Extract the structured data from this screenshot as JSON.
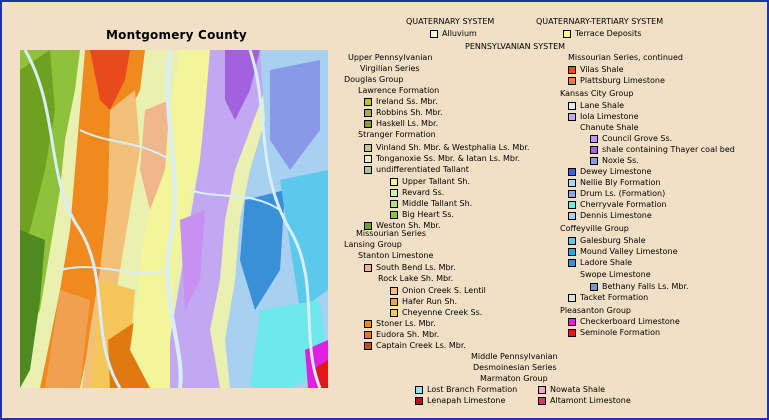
{
  "title": "Montgomery County",
  "headers": [
    {
      "id": "quaternary",
      "text": "QUATERNARY SYSTEM"
    },
    {
      "id": "quaternary-tertiary",
      "text": "QUATERNARY-TERTIARY SYSTEM"
    },
    {
      "id": "pennsylvanian",
      "text": "PENNSYLVANIAN SYSTEM"
    }
  ],
  "labels": [
    {
      "id": "upper-pennsylvanian",
      "text": "Upper Pennsylvanian"
    },
    {
      "id": "virgilian-series",
      "text": "Virgilian Series"
    },
    {
      "id": "douglas-group",
      "text": "Douglas Group"
    },
    {
      "id": "lawrence-formation",
      "text": "Lawrence Formation"
    },
    {
      "id": "stranger-formation",
      "text": "Stranger Formation"
    },
    {
      "id": "missourian-series",
      "text": "Missourian Series"
    },
    {
      "id": "lansing-group",
      "text": "Lansing Group"
    },
    {
      "id": "stanton-limestone",
      "text": "Stanton Limestone"
    },
    {
      "id": "rock-lake-sh",
      "text": "Rock Lake Sh. Mbr."
    },
    {
      "id": "missourian-cont",
      "text": "Missourian Series, continued"
    },
    {
      "id": "kansas-city-group",
      "text": "Kansas City Group"
    },
    {
      "id": "chanute-shale",
      "text": "Chanute Shale"
    },
    {
      "id": "coffeyville-group",
      "text": "Coffeyville Group"
    },
    {
      "id": "swope-limestone",
      "text": "Swope Limestone"
    },
    {
      "id": "pleasanton-group",
      "text": "Pleasanton Group"
    },
    {
      "id": "middle-pennsylvanian",
      "text": "Middle Pennsylvanian"
    },
    {
      "id": "desmoinesian-series",
      "text": "Desmoinesian Series"
    },
    {
      "id": "marmaton-group",
      "text": "Marmaton Group"
    }
  ],
  "units": [
    {
      "id": "alluvium",
      "label": "Alluvium",
      "color": "#f5f5dc"
    },
    {
      "id": "terrace",
      "label": "Terrace Deposits",
      "color": "#ffff7a"
    },
    {
      "id": "ireland",
      "label": "Ireland Ss. Mbr.",
      "color": "#bcc428"
    },
    {
      "id": "robbins",
      "label": "Robbins Sh. Mbr.",
      "color": "#a9ab3c"
    },
    {
      "id": "haskell",
      "label": "Haskell Ls. Mbr.",
      "color": "#8e9a2a"
    },
    {
      "id": "vinland",
      "label": "Vinland Sh. Mbr. & Westphalia Ls. Mbr.",
      "color": "#c6c67a"
    },
    {
      "id": "tonganoxie",
      "label": "Tonganoxie Ss. Mbr. & Iatan Ls. Mbr.",
      "color": "#eaf0b0"
    },
    {
      "id": "undiff-tallant",
      "label": "undifferentiated Tallant",
      "color": "#aec9a0"
    },
    {
      "id": "upper-tallant",
      "label": "Upper Tallant Sh.",
      "color": "#f2f59a"
    },
    {
      "id": "revard",
      "label": "Revard Ss.",
      "color": "#d5f0a8"
    },
    {
      "id": "middle-tallant",
      "label": "Middle Tallant Sh.",
      "color": "#b8e07a"
    },
    {
      "id": "big-heart",
      "label": "Big Heart Ss.",
      "color": "#8fc13a"
    },
    {
      "id": "weston",
      "label": "Weston Sh. Mbr.",
      "color": "#6fa020"
    },
    {
      "id": "south-bend",
      "label": "South Bend Ls. Mbr.",
      "color": "#f0b88a"
    },
    {
      "id": "onion-creek",
      "label": "Onion Creek S. Lentil",
      "color": "#f3c07a"
    },
    {
      "id": "hafer-run",
      "label": "Hafer Run Sh.",
      "color": "#f0a050"
    },
    {
      "id": "cheyenne-creek",
      "label": "Cheyenne Creek Ss.",
      "color": "#f5c65a"
    },
    {
      "id": "stoner",
      "label": "Stoner Ls. Mbr.",
      "color": "#f08a1c"
    },
    {
      "id": "eudora",
      "label": "Eudora Sh. Mbr.",
      "color": "#e07a10"
    },
    {
      "id": "captain-creek",
      "label": "Captain Creek Ls. Mbr.",
      "color": "#b65c12"
    },
    {
      "id": "vilas",
      "label": "Vilas Shale",
      "color": "#e84a1c"
    },
    {
      "id": "plattsburg",
      "label": "Plattsburg Limestone",
      "color": "#f07a4a"
    },
    {
      "id": "lane",
      "label": "Lane Shale",
      "color": "#e6e6f6"
    },
    {
      "id": "iola",
      "label": "Iola Limestone",
      "color": "#c2a8f0"
    },
    {
      "id": "council-grove",
      "label": "Council Grove Ss.",
      "color": "#c890f0"
    },
    {
      "id": "thayer",
      "label": "shale containing Thayer coal bed",
      "color": "#a262e0"
    },
    {
      "id": "noxie",
      "label": "Noxie Ss.",
      "color": "#8a98e8"
    },
    {
      "id": "dewey",
      "label": "Dewey Limestone",
      "color": "#3a62d8"
    },
    {
      "id": "nellie-bly",
      "label": "Nellie Bly Formation",
      "color": "#a8d8f8"
    },
    {
      "id": "drum",
      "label": "Drum Ls. (Formation)",
      "color": "#88a8e8"
    },
    {
      "id": "cherryvale",
      "label": "Cherryvale Formation",
      "color": "#6ee8ea"
    },
    {
      "id": "dennis",
      "label": "Dennis Limestone",
      "color": "#a8d0f0"
    },
    {
      "id": "galesburg",
      "label": "Galesburg Shale",
      "color": "#5cc8ec"
    },
    {
      "id": "mound-valley",
      "label": "Mound Valley Limestone",
      "color": "#2aa8e0"
    },
    {
      "id": "ladore",
      "label": "Ladore Shale",
      "color": "#3a90d8"
    },
    {
      "id": "bethany-falls",
      "label": "Bethany Falls Ls. Mbr.",
      "color": "#7898c8"
    },
    {
      "id": "tacket",
      "label": "Tacket Formation",
      "color": "#e0e0e0"
    },
    {
      "id": "checkerboard",
      "label": "Checkerboard Limestone",
      "color": "#e020e0"
    },
    {
      "id": "seminole",
      "label": "Seminole Formation",
      "color": "#e01818"
    },
    {
      "id": "lost-branch",
      "label": "Lost Branch Formation",
      "color": "#9ae0f0"
    },
    {
      "id": "nowata",
      "label": "Nowata Shale",
      "color": "#f2a6c8"
    },
    {
      "id": "lenapah",
      "label": "Lenapah Limestone",
      "color": "#c01010"
    },
    {
      "id": "altamont",
      "label": "Altamont Limestone",
      "color": "#d03a6a"
    }
  ],
  "colors": {
    "background": "#f2e0c6",
    "border": "#1f34a8",
    "river": "#d8eef8",
    "swatch_border": "#000000"
  }
}
